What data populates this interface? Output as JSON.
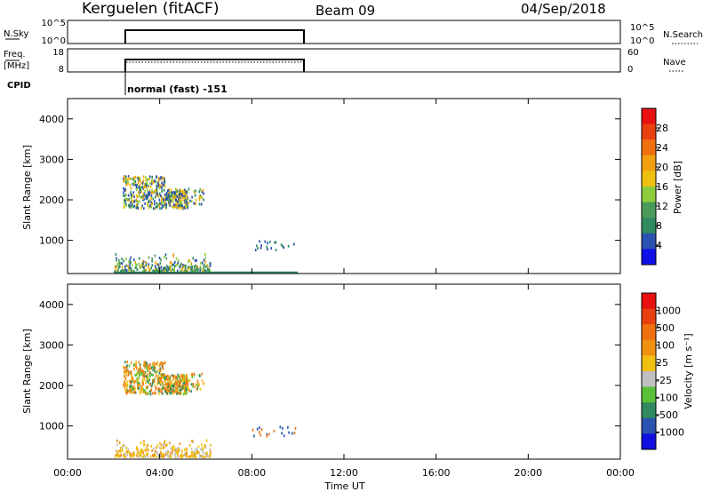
{
  "header": {
    "station": "Kerguelen (fitACF)",
    "beam": "Beam 09",
    "date": "04/Sep/2018"
  },
  "top_panels": {
    "nsky_label": "N.Sky",
    "nsky_ticks": [
      "10^5",
      "10^0"
    ],
    "nsky_right_ticks": [
      "10^5",
      "10^0"
    ],
    "nsearch_label": "N.Search",
    "freq_label_1": "Freq.",
    "freq_label_2": "[MHz]",
    "freq_ticks": [
      "18",
      "8"
    ],
    "nave_label": "Nave",
    "nave_ticks": [
      "60",
      "0"
    ],
    "cpid_label": "CPID",
    "cpid_text": "normal (fast) -151"
  },
  "chart_data": [
    {
      "type": "heatmap",
      "name": "power",
      "ylabel": "Slant Range [km]",
      "yticks": [
        "4000",
        "3000",
        "2000",
        "1000"
      ],
      "ylim": [
        180,
        4500
      ],
      "xlim": [
        0,
        24
      ],
      "colorbar_label": "Power [dB]",
      "colorbar_ticks": [
        "28",
        "24",
        "20",
        "16",
        "12",
        "8",
        "4"
      ],
      "colorscale": [
        "#1010e8",
        "#2a52b0",
        "#2f8a5f",
        "#4a9a5a",
        "#8ccc3a",
        "#f0c010",
        "#f0a010",
        "#f07010",
        "#e84010",
        "#e81010"
      ]
    },
    {
      "type": "heatmap",
      "name": "velocity",
      "ylabel": "Slant Range [km]",
      "yticks": [
        "4000",
        "3000",
        "2000",
        "1000"
      ],
      "ylim": [
        180,
        4500
      ],
      "xlim": [
        0,
        24
      ],
      "colorbar_label": "Velocity [m s⁻¹]",
      "colorbar_ticks": [
        "1000",
        "500",
        "100",
        "25",
        "-25",
        "-100",
        "-500",
        "-1000"
      ],
      "colorscale": [
        "#1010e0",
        "#2a52b0",
        "#2f8a5f",
        "#5ac038",
        "#c0c0c0",
        "#f0c010",
        "#f09010",
        "#f07010",
        "#e84010",
        "#e81010"
      ]
    }
  ],
  "xaxis": {
    "ticks": [
      "00:00",
      "04:00",
      "08:00",
      "12:00",
      "16:00",
      "20:00",
      "00:00"
    ],
    "tick_values": [
      0,
      4,
      8,
      12,
      16,
      20,
      24
    ],
    "label": "Time UT"
  },
  "data_interval_hours": [
    2,
    10
  ]
}
